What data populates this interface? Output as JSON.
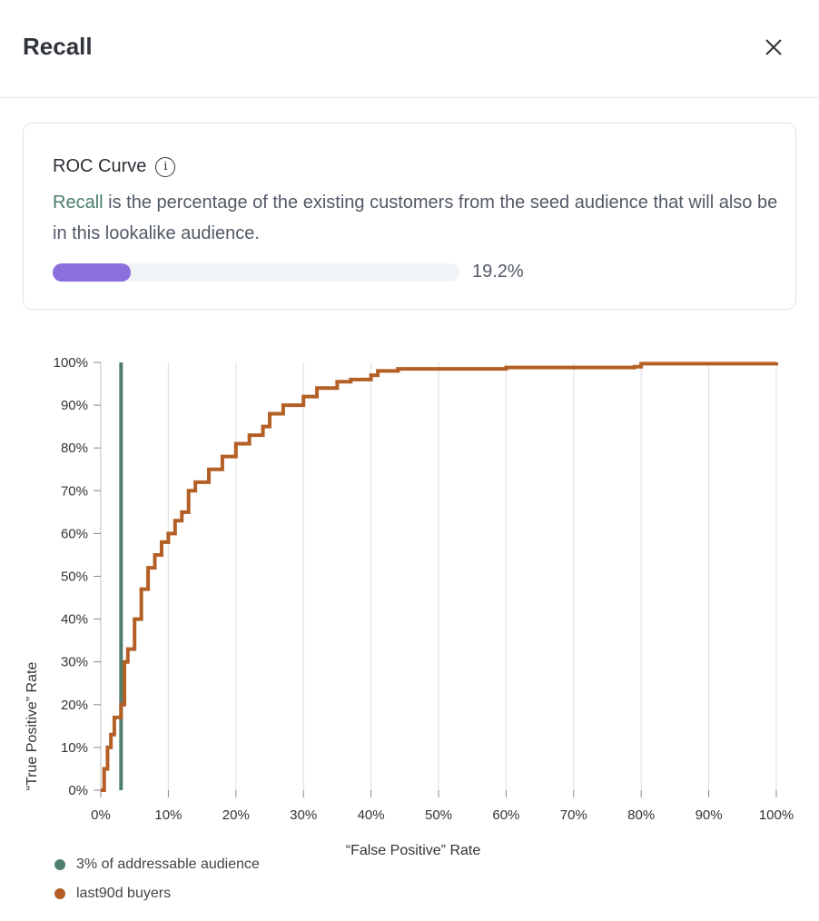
{
  "header": {
    "title": "Recall",
    "close_icon": "close-icon"
  },
  "card": {
    "title": "ROC Curve",
    "info_icon": "info-icon",
    "highlight": "Recall",
    "description": " is the percentage of the existing customers from the seed audience that will also be in this lookalike audience.",
    "progress_percent": 19.2,
    "progress_label": "19.2%",
    "progress_color": "#8b6fdc"
  },
  "chart_data": {
    "type": "line",
    "xlabel": "“False Positive” Rate",
    "ylabel": "“True Positive” Rate",
    "xlim": [
      0,
      100
    ],
    "ylim": [
      0,
      100
    ],
    "x_ticks": [
      "0%",
      "10%",
      "20%",
      "30%",
      "40%",
      "50%",
      "60%",
      "70%",
      "80%",
      "90%",
      "100%"
    ],
    "y_ticks": [
      "0%",
      "10%",
      "20%",
      "30%",
      "40%",
      "50%",
      "60%",
      "70%",
      "80%",
      "90%",
      "100%"
    ],
    "grid": "vertical",
    "legend_position": "bottom-left",
    "series": [
      {
        "name": "3% of addressable audience",
        "color": "#4f7f6f",
        "type": "vline",
        "x": 3
      },
      {
        "name": "last90d buyers",
        "color": "#b35f25",
        "type": "step",
        "x": [
          0,
          0.5,
          1,
          1.5,
          2,
          3,
          3.5,
          4,
          5,
          6,
          7,
          8,
          9,
          10,
          11,
          12,
          13,
          14,
          16,
          18,
          20,
          22,
          24,
          25,
          27,
          30,
          32,
          35,
          37,
          40,
          41,
          44,
          60,
          79,
          80,
          100
        ],
        "y": [
          0,
          5,
          10,
          13,
          17,
          20,
          30,
          33,
          40,
          47,
          52,
          55,
          58,
          60,
          63,
          65,
          70,
          72,
          75,
          78,
          81,
          83,
          85,
          88,
          90,
          92,
          94,
          95.5,
          96,
          97,
          98,
          98.5,
          98.8,
          99,
          99.7,
          100
        ]
      }
    ]
  }
}
